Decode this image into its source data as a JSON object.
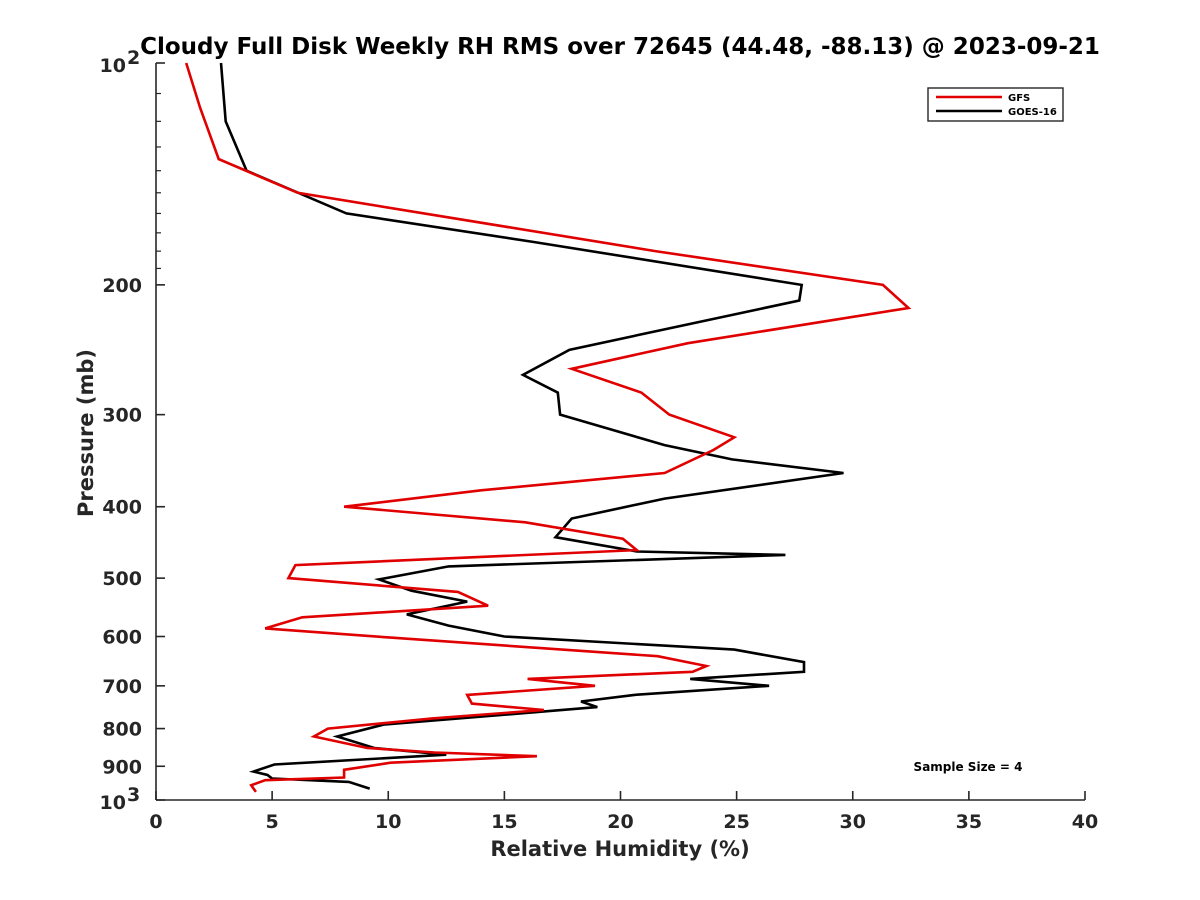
{
  "chart_data": {
    "type": "line",
    "title": "Cloudy Full Disk Weekly RH RMS over 72645 (44.48, -88.13) @ 2023-09-21",
    "xlabel": "Relative Humidity (%)",
    "ylabel": "Pressure (mb)",
    "xlim": [
      0,
      40
    ],
    "ylim": [
      100,
      1000
    ],
    "y_scale": "log",
    "y_reversed": true,
    "x_ticks": [
      "0",
      "5",
      "10",
      "15",
      "20",
      "25",
      "30",
      "35",
      "40"
    ],
    "y_ticks": [
      {
        "value": 100,
        "base": "10",
        "exp": "2"
      },
      {
        "value": 200,
        "label": "200"
      },
      {
        "value": 300,
        "label": "300"
      },
      {
        "value": 400,
        "label": "400"
      },
      {
        "value": 500,
        "label": "500"
      },
      {
        "value": 600,
        "label": "600"
      },
      {
        "value": 700,
        "label": "700"
      },
      {
        "value": 800,
        "label": "800"
      },
      {
        "value": 900,
        "label": "900"
      },
      {
        "value": 1000,
        "base": "10",
        "exp": "3"
      }
    ],
    "legend_position": "top-right",
    "annotation": "Sample Size = 4",
    "series": [
      {
        "name": "GFS",
        "color": "#e00000",
        "points": [
          [
            1.3,
            100
          ],
          [
            1.9,
            115
          ],
          [
            2.7,
            135
          ],
          [
            6.1,
            150
          ],
          [
            21.5,
            180
          ],
          [
            31.3,
            200
          ],
          [
            32.4,
            215
          ],
          [
            22.9,
            240
          ],
          [
            17.9,
            260
          ],
          [
            20.9,
            280
          ],
          [
            22.1,
            300
          ],
          [
            24.9,
            322
          ],
          [
            24.0,
            335
          ],
          [
            21.9,
            360
          ],
          [
            14.0,
            380
          ],
          [
            8.1,
            400
          ],
          [
            15.9,
            420
          ],
          [
            20.1,
            442
          ],
          [
            20.7,
            458
          ],
          [
            6.0,
            480
          ],
          [
            5.7,
            500
          ],
          [
            13.0,
            522
          ],
          [
            14.3,
            545
          ],
          [
            6.3,
            565
          ],
          [
            4.7,
            585
          ],
          [
            10.1,
            602
          ],
          [
            21.6,
            638
          ],
          [
            23.7,
            658
          ],
          [
            23.1,
            670
          ],
          [
            16.0,
            685
          ],
          [
            18.9,
            700
          ],
          [
            13.4,
            720
          ],
          [
            13.6,
            740
          ],
          [
            16.7,
            755
          ],
          [
            11.9,
            775
          ],
          [
            7.4,
            800
          ],
          [
            6.8,
            820
          ],
          [
            9.1,
            850
          ],
          [
            12.0,
            862
          ],
          [
            16.4,
            872
          ],
          [
            10.1,
            890
          ],
          [
            8.1,
            910
          ],
          [
            8.1,
            932
          ],
          [
            4.7,
            940
          ],
          [
            4.1,
            955
          ],
          [
            4.3,
            975
          ]
        ]
      },
      {
        "name": "GOES-16",
        "color": "#000000",
        "points": [
          [
            2.8,
            100
          ],
          [
            3.0,
            120
          ],
          [
            3.9,
            140
          ],
          [
            8.2,
            160
          ],
          [
            16.3,
            175
          ],
          [
            27.8,
            200
          ],
          [
            27.7,
            210
          ],
          [
            17.8,
            245
          ],
          [
            15.8,
            265
          ],
          [
            17.3,
            280
          ],
          [
            17.4,
            300
          ],
          [
            21.9,
            330
          ],
          [
            24.8,
            345
          ],
          [
            29.6,
            360
          ],
          [
            21.9,
            390
          ],
          [
            17.9,
            415
          ],
          [
            17.2,
            440
          ],
          [
            20.7,
            460
          ],
          [
            27.1,
            465
          ],
          [
            12.6,
            482
          ],
          [
            9.6,
            502
          ],
          [
            11.0,
            520
          ],
          [
            13.4,
            538
          ],
          [
            10.8,
            560
          ],
          [
            12.6,
            580
          ],
          [
            15.0,
            600
          ],
          [
            24.9,
            625
          ],
          [
            27.9,
            650
          ],
          [
            27.9,
            670
          ],
          [
            23.0,
            685
          ],
          [
            26.4,
            700
          ],
          [
            20.6,
            720
          ],
          [
            18.3,
            735
          ],
          [
            19.0,
            748
          ],
          [
            9.8,
            790
          ],
          [
            7.8,
            820
          ],
          [
            9.4,
            850
          ],
          [
            12.5,
            868
          ],
          [
            5.1,
            895
          ],
          [
            4.2,
            915
          ],
          [
            4.8,
            925
          ],
          [
            5.0,
            935
          ],
          [
            8.3,
            945
          ],
          [
            9.2,
            965
          ]
        ]
      }
    ]
  }
}
